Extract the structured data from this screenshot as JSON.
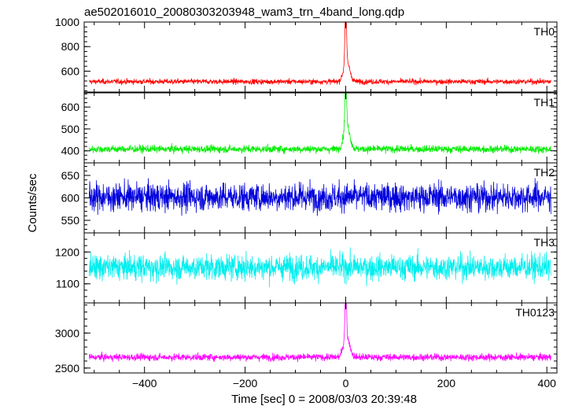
{
  "chart_data": {
    "type": "line",
    "title": "ae502016010_20080303203948_wam3_trn_4band_long.qdp",
    "xlabel": "Time [sec] 0 = 2008/03/03 20:39:48",
    "ylabel": "Counts/sec",
    "xlim": [
      -520,
      420
    ],
    "xticks": [
      -400,
      -200,
      0,
      200,
      400
    ],
    "xtick_labels": [
      "−400",
      "−200",
      "0",
      "200",
      "400"
    ],
    "x_start": -510,
    "x_end": 408,
    "grid": false,
    "panels": [
      {
        "name": "TH0",
        "color": "#ff0000",
        "ylim": [
          430,
          1000
        ],
        "yticks": [
          600,
          800,
          1000
        ],
        "ytick_labels": [
          "600",
          "800",
          "1000"
        ],
        "baseline": 515,
        "noise": 15,
        "peak": [
          {
            "x": 0,
            "y": 1000,
            "width": 1.5
          },
          {
            "x": 2,
            "y": 680,
            "width": 6
          }
        ]
      },
      {
        "name": "TH1",
        "color": "#00ee00",
        "ylim": [
          345,
          665
        ],
        "yticks": [
          400,
          500,
          600
        ],
        "ytick_labels": [
          "400",
          "500",
          "600"
        ],
        "baseline": 408,
        "noise": 12,
        "peak": [
          {
            "x": 0,
            "y": 655,
            "width": 1.5
          },
          {
            "x": 2,
            "y": 520,
            "width": 6
          }
        ]
      },
      {
        "name": "TH2",
        "color": "#0000dd",
        "ylim": [
          522,
          678
        ],
        "yticks": [
          550,
          600,
          650
        ],
        "ytick_labels": [
          "550",
          "600",
          "650"
        ],
        "baseline": 602,
        "noise": 22,
        "peak": []
      },
      {
        "name": "TH3",
        "color": "#00eeee",
        "ylim": [
          1040,
          1260
        ],
        "yticks": [
          1100,
          1200
        ],
        "ytick_labels": [
          "1100",
          "1200"
        ],
        "baseline": 1152,
        "noise": 28,
        "peak": []
      },
      {
        "name": "TH0123",
        "color": "#ff00ff",
        "ylim": [
          2430,
          3430
        ],
        "yticks": [
          2500,
          3000
        ],
        "ytick_labels": [
          "2500",
          "3000"
        ],
        "baseline": 2655,
        "noise": 35,
        "peak": [
          {
            "x": 0,
            "y": 3420,
            "width": 1.5
          },
          {
            "x": 2,
            "y": 2950,
            "width": 6
          }
        ]
      }
    ]
  }
}
